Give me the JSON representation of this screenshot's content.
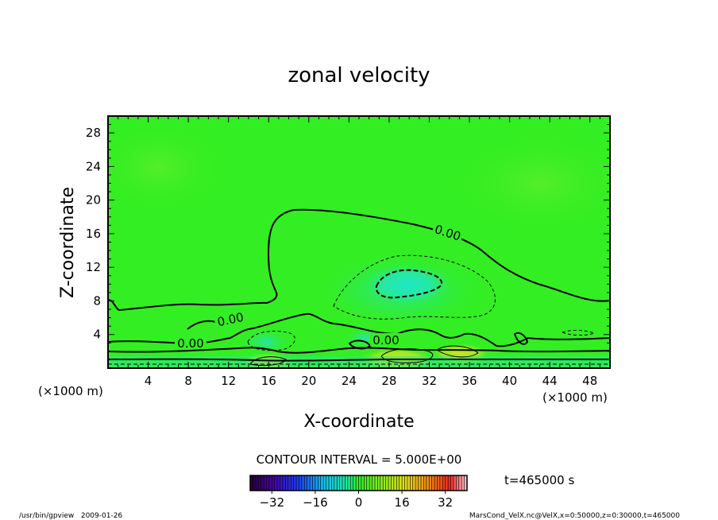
{
  "chart_data": {
    "type": "heatmap",
    "title": "zonal velocity",
    "xlabel": "X-coordinate",
    "ylabel": "Z-coordinate",
    "x_unit": "(×1000 m)",
    "y_unit": "(×1000 m)",
    "xlim": [
      0,
      50
    ],
    "ylim": [
      0,
      30
    ],
    "x_ticks": [
      "4",
      "8",
      "12",
      "16",
      "20",
      "24",
      "28",
      "32",
      "36",
      "40",
      "44",
      "48"
    ],
    "y_ticks": [
      "4",
      "8",
      "12",
      "16",
      "20",
      "24",
      "28"
    ],
    "contour_interval_text": "CONTOUR INTERVAL = 5.000E+00",
    "contour_labels": [
      "0.00",
      "0.00",
      "0.00",
      "0.00"
    ],
    "colorbar": {
      "min": -40,
      "max": 40,
      "ticks": [
        "−32",
        "−16",
        "0",
        "16",
        "32"
      ]
    },
    "time_label": "t=465000 s",
    "footer_left": "/usr/bin/gpview   2009-01-26",
    "footer_right": "MarsCond_VelX.nc@VelX,x=0:50000,z=0:30000,t=465000",
    "colors": {
      "background_field": "#33ee22",
      "slow_region": "#22e6a8",
      "fast_region": "#b4e61e",
      "contour": "#000000"
    }
  }
}
